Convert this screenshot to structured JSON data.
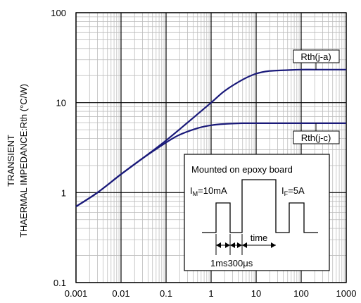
{
  "chart_data": {
    "type": "line",
    "x_scale": "log",
    "y_scale": "log",
    "xlim": [
      0.001,
      1000
    ],
    "ylim": [
      0.1,
      100
    ],
    "x_ticks": [
      "0.001",
      "0.01",
      "0.1",
      "1",
      "10",
      "100",
      "1000"
    ],
    "y_ticks": [
      "0.1",
      "1",
      "10",
      "100"
    ],
    "ylabel_line1": "TRANSIENT",
    "ylabel_line2": "THAERMAL IMPEDANCE:Rth (°C/W)",
    "xlabel": "",
    "grid": true,
    "line_color": "#1a1a7a",
    "series": [
      {
        "name": "Rth(j-a)",
        "x": [
          0.001,
          0.003,
          0.01,
          0.03,
          0.1,
          0.3,
          1,
          2,
          5,
          10,
          20,
          50,
          100,
          200,
          500,
          1000
        ],
        "y": [
          0.7,
          1.0,
          1.6,
          2.4,
          3.8,
          6.0,
          10,
          13.5,
          18,
          21,
          22.5,
          23,
          23.3,
          23.3,
          23.3,
          23.3
        ]
      },
      {
        "name": "Rth(j-c)",
        "x": [
          0.001,
          0.003,
          0.01,
          0.03,
          0.1,
          0.2,
          0.5,
          1,
          2,
          5,
          10,
          100,
          1000
        ],
        "y": [
          0.7,
          1.0,
          1.6,
          2.4,
          3.6,
          4.4,
          5.2,
          5.6,
          5.8,
          5.9,
          5.9,
          5.9,
          5.9
        ]
      }
    ],
    "inset": {
      "title": "Mounted on epoxy board",
      "im_label": "I",
      "im_sub": "M",
      "im_value": "=10mA",
      "if_label": "I",
      "if_sub": "F",
      "if_value": "=5A",
      "time_label": "time",
      "width_label_1": "1ms",
      "width_label_2": "300μs"
    }
  }
}
